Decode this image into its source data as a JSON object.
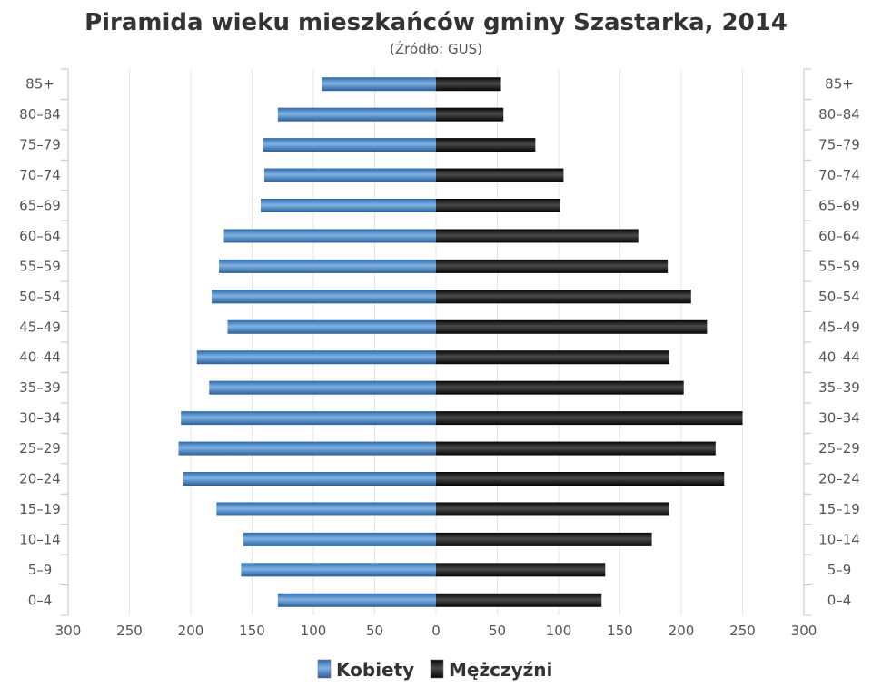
{
  "chart_data": {
    "type": "bar",
    "orientation": "horizontal-pyramid",
    "title": "Piramida wieku mieszkańców gminy Szastarka, 2014",
    "subtitle": "(Źródło: GUS)",
    "categories": [
      "85+",
      "80–84",
      "75–79",
      "70–74",
      "65–69",
      "60–64",
      "55–59",
      "50–54",
      "45–49",
      "40–44",
      "35–39",
      "30–34",
      "25–29",
      "20–24",
      "15–19",
      "10–14",
      "5–9",
      "0–4"
    ],
    "series": [
      {
        "name": "Kobiety",
        "color": "#4a86c5",
        "values": [
          93,
          129,
          141,
          140,
          143,
          173,
          177,
          183,
          170,
          195,
          185,
          208,
          210,
          206,
          179,
          157,
          159,
          129
        ]
      },
      {
        "name": "Mężczyźni",
        "color": "#1a1a1a",
        "values": [
          53,
          55,
          81,
          104,
          101,
          165,
          189,
          208,
          221,
          190,
          202,
          250,
          228,
          235,
          190,
          176,
          138,
          135
        ]
      }
    ],
    "x_ticks": [
      "300",
      "250",
      "200",
      "150",
      "100",
      "50",
      "0",
      "50",
      "100",
      "150",
      "200",
      "250",
      "300"
    ],
    "xlim": [
      -300,
      300
    ],
    "grid": true,
    "legend_position": "bottom-center"
  }
}
